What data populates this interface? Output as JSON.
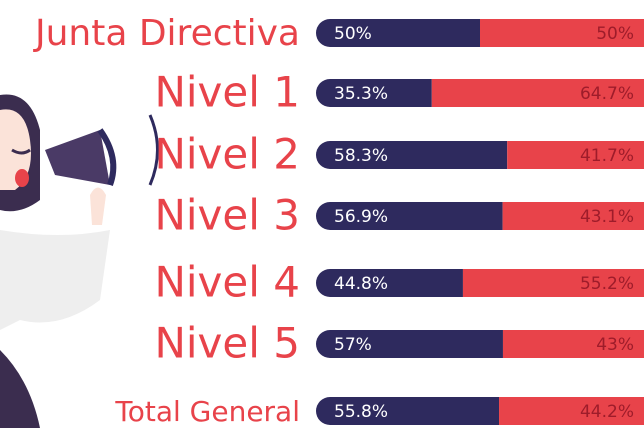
{
  "chart_data": {
    "type": "bar",
    "orientation": "horizontal",
    "stacked": true,
    "categories": [
      "Junta Directiva",
      "Nivel 1",
      "Nivel 2",
      "Nivel 3",
      "Nivel 4",
      "Nivel 5",
      "Total General"
    ],
    "series": [
      {
        "color": "#2e2a5e",
        "values": [
          50,
          35.3,
          58.3,
          56.9,
          44.8,
          57,
          55.8
        ],
        "value_labels": [
          "50%",
          "35.3%",
          "58.3%",
          "56.9%",
          "44.8%",
          "57%",
          "55.8%"
        ]
      },
      {
        "color": "#e8434a",
        "values": [
          50,
          64.7,
          41.7,
          43.1,
          55.2,
          43,
          44.2
        ],
        "value_labels": [
          "50%",
          "64.7%",
          "41.7%",
          "43.1%",
          "55.2%",
          "43%",
          "44.2%"
        ]
      }
    ],
    "xlim": [
      0,
      100
    ]
  }
}
